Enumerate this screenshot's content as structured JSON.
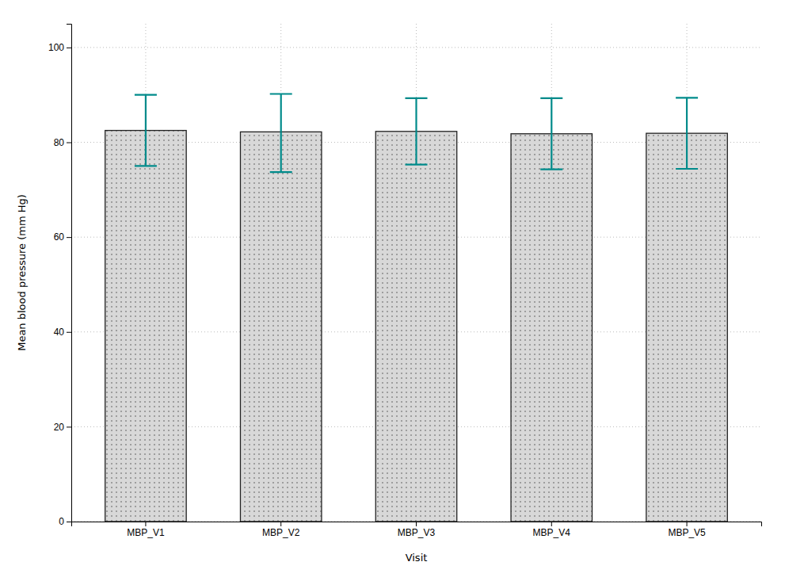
{
  "chart_data": {
    "type": "bar",
    "xlabel": "Visit",
    "ylabel": "Mean blood pressure (mm Hg)",
    "categories": [
      "MBP_V1",
      "MBP_V2",
      "MBP_V3",
      "MBP_V4",
      "MBP_V5"
    ],
    "values": [
      82.5,
      82.2,
      82.3,
      81.8,
      81.9
    ],
    "errors_upper": [
      7.5,
      8.0,
      7.0,
      7.5,
      7.5
    ],
    "errors_lower": [
      7.5,
      8.5,
      7.0,
      7.5,
      7.5
    ],
    "color": "#d8d8d8",
    "ylim": [
      0,
      105
    ],
    "yticks": [
      0,
      20,
      40,
      60,
      80,
      100
    ],
    "grid": true
  }
}
